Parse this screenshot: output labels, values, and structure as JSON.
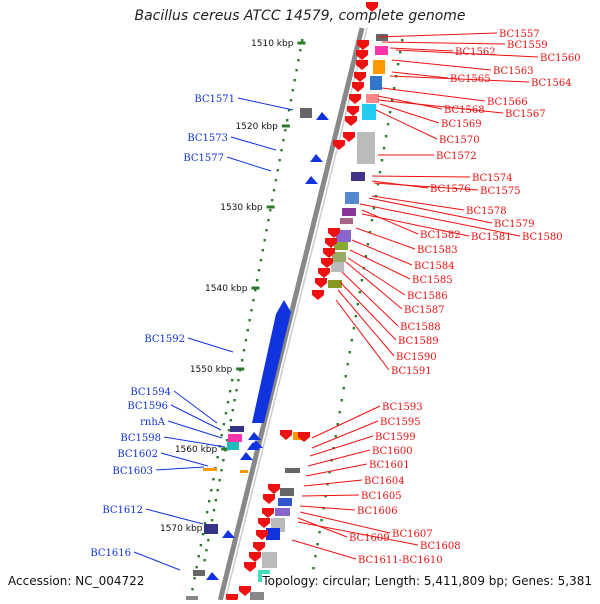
{
  "title": "Bacillus cereus ATCC 14579, complete genome",
  "footer": {
    "accession": "Accession: NC_004722",
    "topology": "Topology: circular; Length: 5,411,809 bp; Genes: 5,381"
  },
  "colors": {
    "reverse": "#ee1111",
    "forward": "#1133dd",
    "scale": "#2a7a2a",
    "axis": "#888888"
  },
  "ruler": [
    {
      "label": "1510 kbp"
    },
    {
      "label": "1520 kbp"
    },
    {
      "label": "1530 kbp"
    },
    {
      "label": "1540 kbp"
    },
    {
      "label": "1550 kbp"
    },
    {
      "label": "1560 kbp"
    },
    {
      "label": "1570 kbp"
    }
  ],
  "left_genes": [
    "BC1571",
    "BC1573",
    "BC1577",
    "BC1592",
    "BC1594",
    "BC1596",
    "rnhA",
    "BC1598",
    "BC1602",
    "BC1603",
    "BC1612",
    "BC1616"
  ],
  "right_genes": [
    "BC1557",
    "BC1559",
    "BC1562",
    "BC1560",
    "BC1563",
    "BC1565",
    "BC1564",
    "BC1566",
    "BC1568",
    "BC1567",
    "BC1569",
    "BC1570",
    "BC1572",
    "BC1574",
    "BC1576",
    "BC1575",
    "BC1578",
    "BC1579",
    "BC1582",
    "BC1581",
    "BC1580",
    "BC1583",
    "BC1584",
    "BC1585",
    "BC1586",
    "BC1587",
    "BC1588",
    "BC1589",
    "BC1590",
    "BC1591",
    "BC1593",
    "BC1595",
    "BC1599",
    "BC1600",
    "BC1601",
    "BC1604",
    "BC1605",
    "BC1606",
    "BC1607",
    "BC1609",
    "BC1608",
    "BC1611-BC1610"
  ]
}
